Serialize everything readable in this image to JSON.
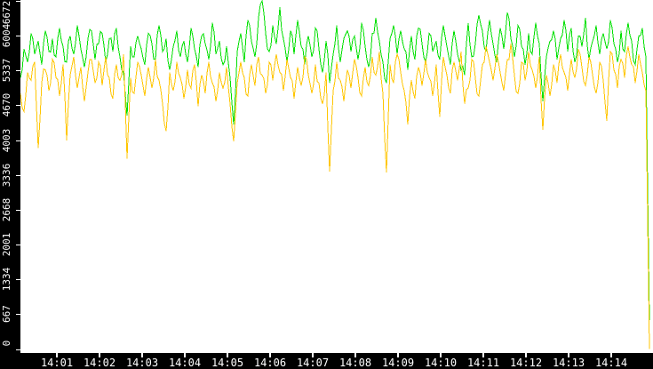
{
  "chart_data": {
    "type": "line",
    "title": "",
    "grid": false,
    "legend": null,
    "colors": {
      "background": "#ffffff",
      "axis_strip": "#000000",
      "tick_label": "#ffffff"
    },
    "x_axis": {
      "tick_labels": [
        "14:01",
        "14:02",
        "14:03",
        "14:04",
        "14:05",
        "14:06",
        "14:07",
        "14:08",
        "14:09",
        "14:10",
        "14:11",
        "14:12",
        "14:13",
        "14:14"
      ],
      "tick_minutes": [
        1,
        2,
        3,
        4,
        5,
        6,
        7,
        8,
        9,
        10,
        11,
        12,
        13,
        14
      ],
      "range_minutes": [
        0.156,
        14.99
      ]
    },
    "y_axis": {
      "min": 0,
      "max": 6672,
      "ticks": [
        0,
        667,
        1334,
        2001,
        2668,
        3336,
        4003,
        4670,
        5337,
        6004,
        6672
      ]
    },
    "sampling": {
      "t_start_min": 0.15625,
      "t_step_min": 0.0833333,
      "noise_halfwidth": 150
    },
    "series": [
      {
        "name": "series-green",
        "color": "#00e000",
        "values": [
          5200,
          5750,
          5500,
          6050,
          5650,
          5900,
          5450,
          6100,
          5700,
          5950,
          5600,
          6150,
          5800,
          5500,
          6000,
          5650,
          6200,
          5750,
          5400,
          5950,
          6100,
          5550,
          5850,
          6050,
          5500,
          5950,
          5700,
          6150,
          5600,
          5300,
          4470,
          5800,
          5600,
          6000,
          5750,
          5450,
          6050,
          5850,
          5550,
          6200,
          5700,
          5950,
          5350,
          5800,
          6100,
          5600,
          5900,
          5500,
          6150,
          5750,
          5400,
          6000,
          5850,
          5550,
          6250,
          5650,
          5900,
          5450,
          5800,
          5200,
          4300,
          5700,
          6050,
          5500,
          6300,
          5900,
          5600,
          6350,
          6672,
          6050,
          5700,
          6200,
          5850,
          6550,
          5950,
          5500,
          6100,
          5650,
          6300,
          5800,
          5450,
          6000,
          5600,
          6150,
          5750,
          5300,
          5900,
          5100,
          5650,
          6200,
          5500,
          5950,
          6100,
          5700,
          6000,
          5550,
          6250,
          5800,
          5400,
          6050,
          6350,
          5900,
          5500,
          5100,
          5950,
          6200,
          5650,
          6100,
          5750,
          5350,
          6000,
          5550,
          6150,
          5850,
          5500,
          6050,
          5700,
          5900,
          5550,
          6200,
          5800,
          5450,
          6100,
          5650,
          5350,
          5250,
          6250,
          5600,
          5850,
          6400,
          6100,
          5700,
          6300,
          5850,
          5500,
          6150,
          5750,
          6450,
          5950,
          5600,
          6200,
          5800,
          5450,
          6050,
          5650,
          6250,
          5850,
          4750,
          5600,
          5900,
          6100,
          5550,
          5950,
          6300,
          5700,
          6150,
          5500,
          6000,
          5800,
          6350,
          5550,
          5900,
          6200,
          5650,
          6050,
          5750,
          6300,
          5850,
          5500,
          6100,
          5700,
          6250,
          5900,
          5450,
          6000,
          6150,
          5600,
          550
        ]
      },
      {
        "name": "series-yellow",
        "color": "#ffc600",
        "values": [
          4900,
          4550,
          5300,
          5150,
          5500,
          3850,
          5100,
          5350,
          4950,
          5550,
          5200,
          4850,
          5450,
          4000,
          5250,
          5600,
          5000,
          5400,
          4750,
          5300,
          5550,
          5100,
          5500,
          5050,
          5600,
          5200,
          4800,
          5450,
          5150,
          5650,
          3650,
          5200,
          4900,
          5500,
          5250,
          4850,
          5400,
          5000,
          5550,
          5150,
          4700,
          4180,
          5300,
          4950,
          5500,
          5200,
          4800,
          5350,
          5000,
          5450,
          4650,
          5250,
          4900,
          5500,
          5100,
          4750,
          5300,
          5000,
          5400,
          4700,
          3980,
          5100,
          5500,
          5200,
          4850,
          5450,
          5050,
          5600,
          5250,
          4900,
          5500,
          5150,
          5650,
          5300,
          4950,
          5550,
          5200,
          4800,
          5400,
          5050,
          5600,
          5250,
          4900,
          5450,
          5100,
          4700,
          5300,
          3400,
          4950,
          5500,
          5150,
          4750,
          5350,
          5000,
          5550,
          5200,
          4850,
          5400,
          5050,
          5600,
          5250,
          5700,
          4900,
          3380,
          5450,
          5100,
          5650,
          5300,
          4950,
          4300,
          5150,
          4800,
          5400,
          5050,
          5550,
          5200,
          4850,
          5450,
          4450,
          5600,
          5250,
          4900,
          5500,
          5150,
          5700,
          4700,
          5000,
          5550,
          5200,
          4850,
          5450,
          5800,
          5500,
          5150,
          5650,
          5300,
          4950,
          5550,
          5850,
          5250,
          4900,
          5500,
          5150,
          5700,
          5350,
          5000,
          5600,
          4200,
          5250,
          4850,
          5450,
          5100,
          5650,
          5300,
          4950,
          5550,
          5200,
          5750,
          5400,
          5050,
          5600,
          5250,
          4900,
          5500,
          5150,
          4370,
          5700,
          5350,
          5000,
          5550,
          5200,
          5800,
          5450,
          5100,
          5650,
          5300,
          4950,
          0
        ]
      }
    ]
  }
}
